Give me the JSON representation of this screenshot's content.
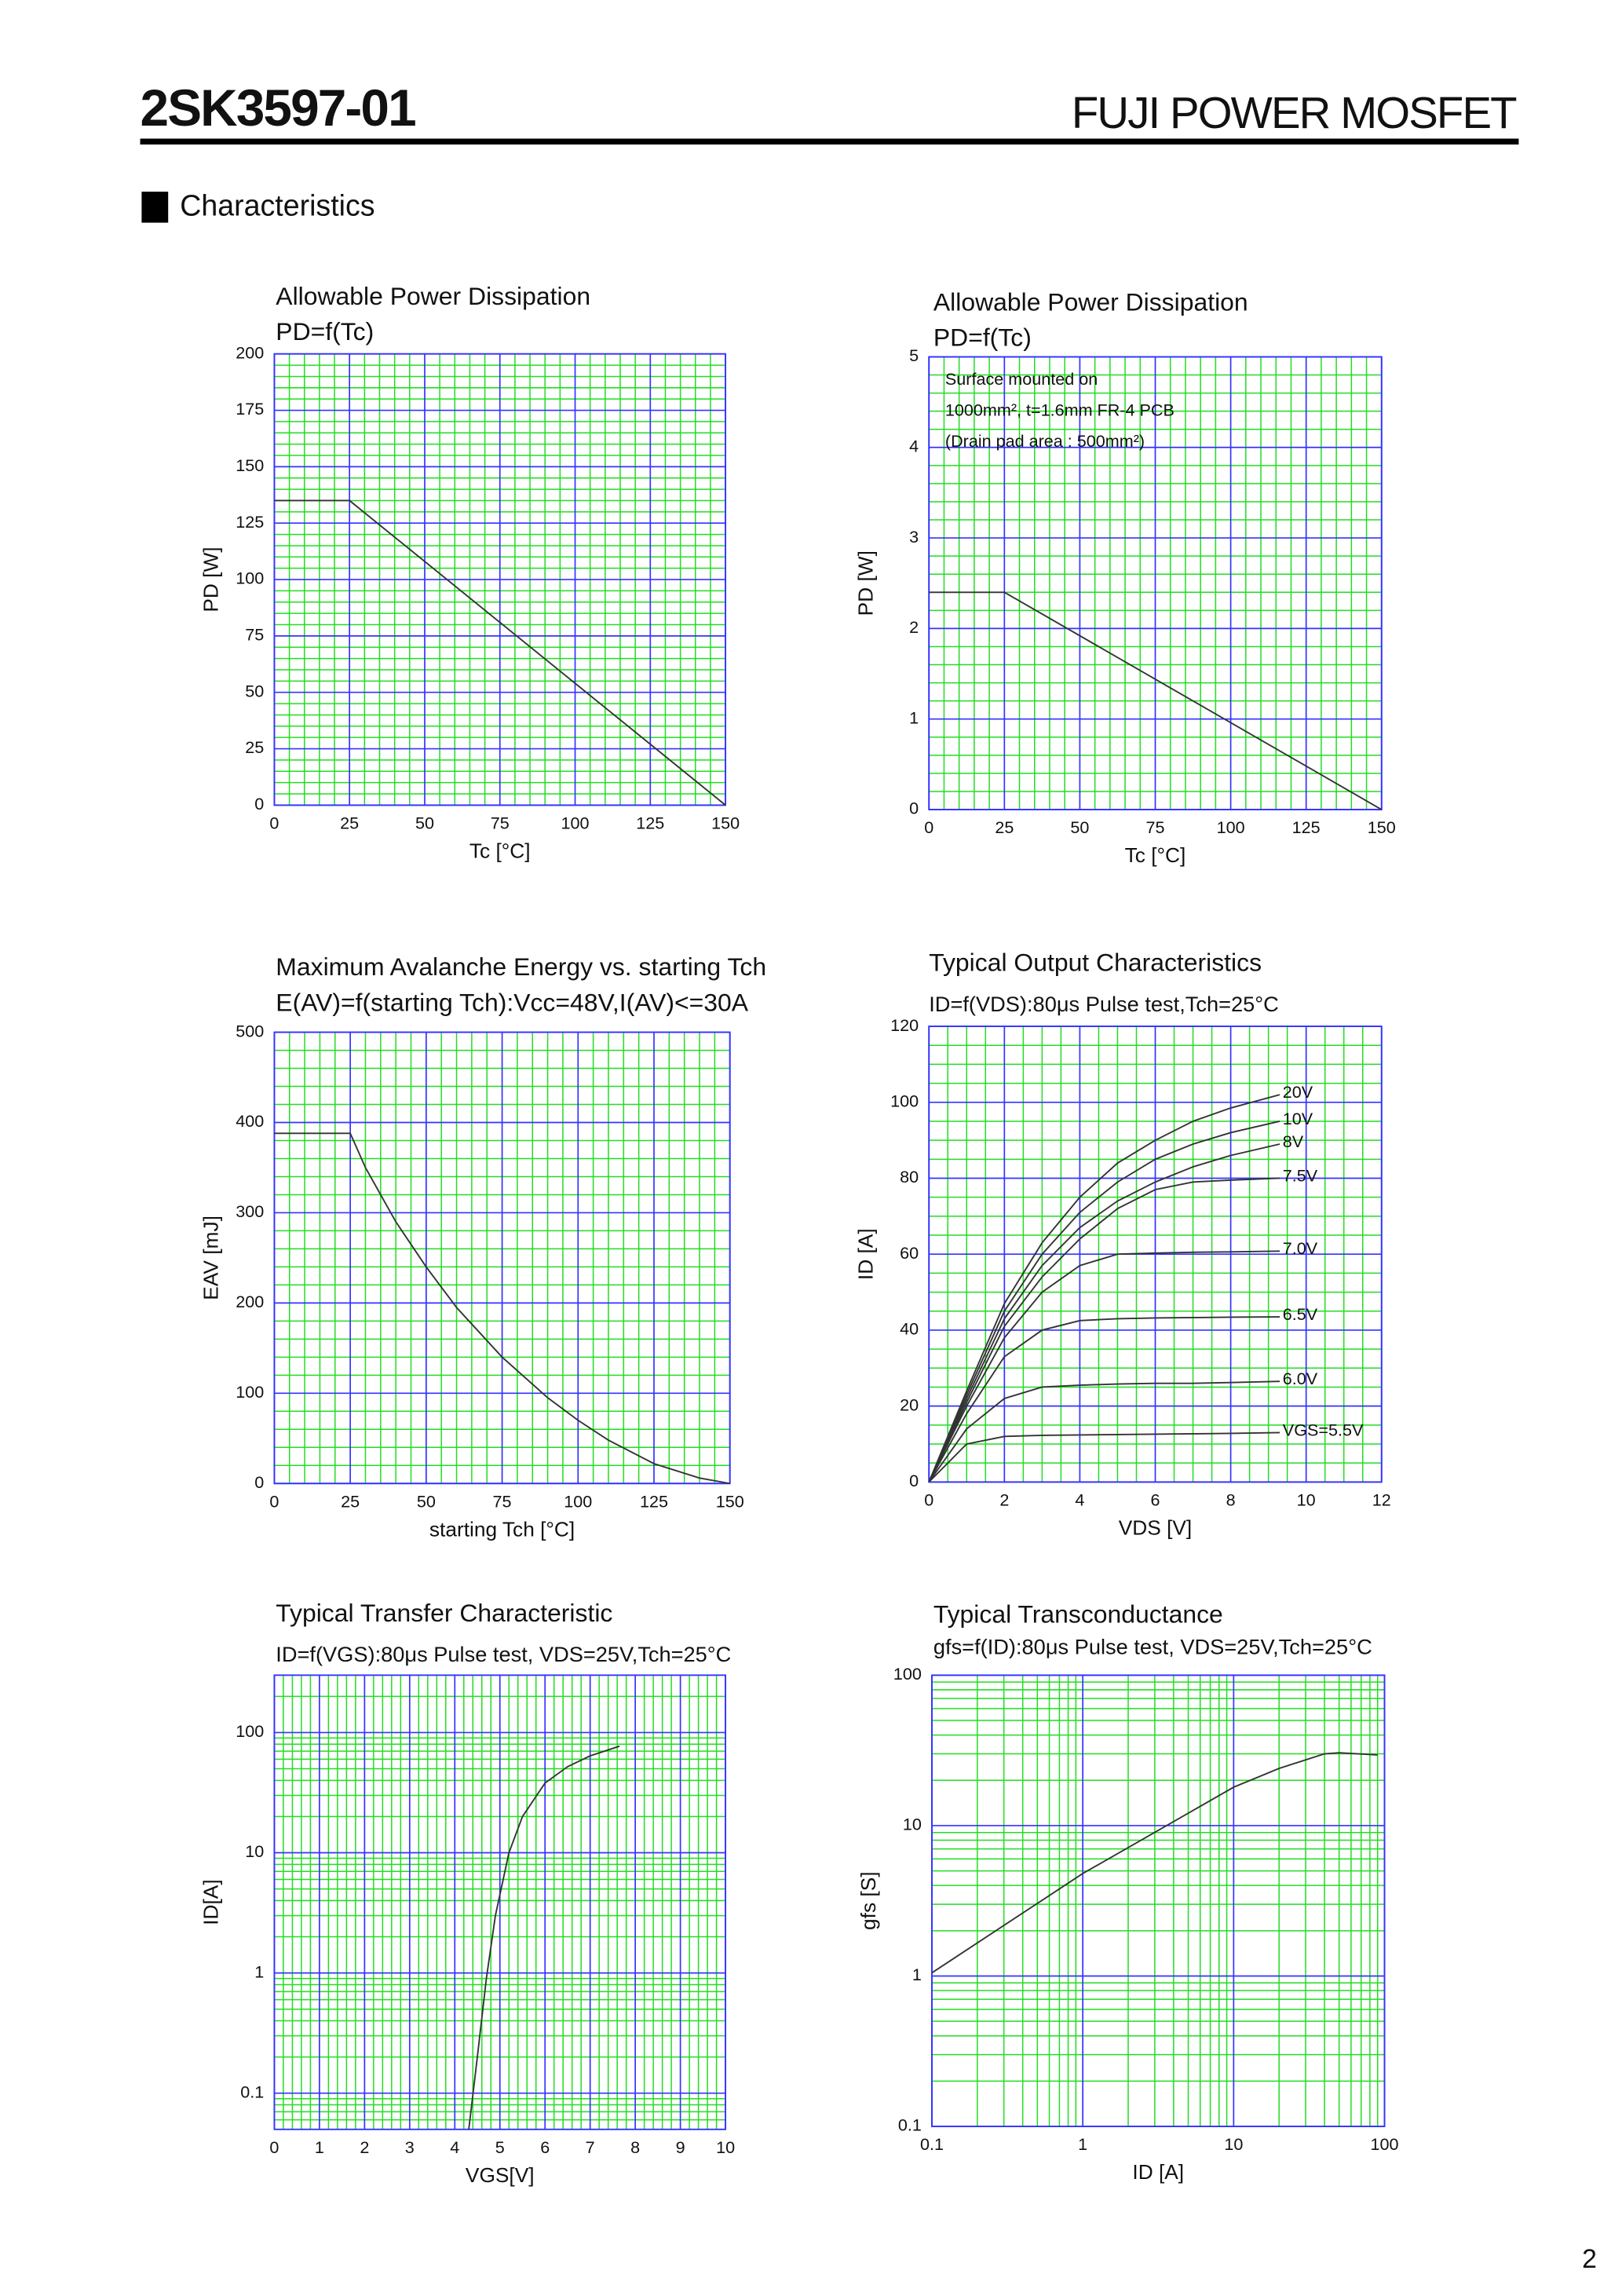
{
  "header": {
    "part": "2SK3597-01",
    "brand": "FUJI POWER MOSFET",
    "section": "Characteristics",
    "page": "2"
  },
  "chart_data": [
    {
      "type": "line",
      "title": "Allowable Power Dissipation",
      "subtitle": "PD=f(Tc)",
      "xlabel": "Tc [°C]",
      "ylabel": "PD [W]",
      "x": [
        0,
        25,
        150
      ],
      "series": [
        {
          "color": "#333333",
          "values": [
            135,
            135,
            0
          ]
        }
      ],
      "xlim": [
        0,
        150
      ],
      "ylim": [
        0,
        200
      ],
      "xticks": [
        0,
        25,
        50,
        75,
        100,
        125,
        150
      ],
      "yticks": [
        0,
        25,
        50,
        75,
        100,
        125,
        150,
        175,
        200
      ],
      "grid": true,
      "grid_color": "#3333ff",
      "minor_grid_color": "#22dd22"
    },
    {
      "type": "line",
      "title": "Allowable Power Dissipation",
      "subtitle": "PD=f(Tc)",
      "xlabel": "Tc [°C]",
      "ylabel": "PD [W]",
      "annotations": [
        "Surface mounted on",
        "1000mm², t=1.6mm FR-4 PCB",
        "(Drain pad area : 500mm²)"
      ],
      "x": [
        0,
        25,
        150
      ],
      "series": [
        {
          "color": "#333333",
          "values": [
            2.4,
            2.4,
            0
          ]
        }
      ],
      "xlim": [
        0,
        150
      ],
      "ylim": [
        0,
        5
      ],
      "xticks": [
        0,
        25,
        50,
        75,
        100,
        125,
        150
      ],
      "yticks": [
        0,
        1,
        2,
        3,
        4,
        5
      ],
      "grid": true,
      "grid_color": "#3333ff",
      "minor_grid_color": "#22dd22"
    },
    {
      "type": "line",
      "title": "Maximum Avalanche Energy vs. starting Tch",
      "subtitle": "E(AV)=f(starting Tch):Vcc=48V,I(AV)<=30A",
      "xlabel": "starting Tch [°C]",
      "ylabel": "EAV [mJ]",
      "x": [
        0,
        25,
        30,
        40,
        50,
        60,
        75,
        90,
        100,
        110,
        125,
        140,
        150
      ],
      "series": [
        {
          "color": "#333333",
          "values": [
            388,
            388,
            350,
            290,
            240,
            195,
            140,
            95,
            70,
            48,
            22,
            6,
            0
          ]
        }
      ],
      "xlim": [
        0,
        150
      ],
      "ylim": [
        0,
        500
      ],
      "xticks": [
        0,
        25,
        50,
        75,
        100,
        125,
        150
      ],
      "yticks": [
        0,
        100,
        200,
        300,
        400,
        500
      ],
      "grid": true,
      "grid_color": "#3333ff",
      "minor_grid_color": "#22dd22"
    },
    {
      "type": "line",
      "title": "Typical Output Characteristics",
      "subtitle": "ID=f(VDS):80μs Pulse test,Tch=25°C",
      "xlabel": "VDS [V]",
      "ylabel": "ID [A]",
      "x": [
        0,
        1,
        2,
        3,
        4,
        5,
        6,
        7,
        8,
        9.3
      ],
      "series": [
        {
          "name": "20V",
          "color": "#333333",
          "values": [
            0,
            24,
            47,
            63,
            75,
            84,
            90,
            95,
            98.5,
            102
          ]
        },
        {
          "name": "10V",
          "color": "#333333",
          "values": [
            0,
            23,
            45,
            60,
            71,
            79,
            85,
            89,
            92,
            95
          ]
        },
        {
          "name": "8V",
          "color": "#333333",
          "values": [
            0,
            22,
            43,
            57,
            67,
            74,
            79,
            83,
            86,
            89
          ]
        },
        {
          "name": "7.5V",
          "color": "#333333",
          "values": [
            0,
            21,
            41,
            54,
            64,
            72,
            77,
            79,
            79.5,
            80
          ]
        },
        {
          "name": "7.0V",
          "color": "#333333",
          "values": [
            0,
            20,
            38,
            50,
            57,
            60,
            60.3,
            60.5,
            60.6,
            60.8
          ]
        },
        {
          "name": "6.5V",
          "color": "#333333",
          "values": [
            0,
            18,
            33,
            40,
            42.5,
            43,
            43.2,
            43.3,
            43.4,
            43.5
          ]
        },
        {
          "name": "6.0V",
          "color": "#333333",
          "values": [
            0,
            14,
            22,
            25,
            25.5,
            25.8,
            26,
            26,
            26.2,
            26.5
          ]
        },
        {
          "name": "VGS=5.5V",
          "color": "#333333",
          "values": [
            0,
            10,
            12,
            12.3,
            12.4,
            12.5,
            12.6,
            12.7,
            12.8,
            13
          ]
        }
      ],
      "xlim": [
        0,
        12
      ],
      "ylim": [
        0,
        120
      ],
      "xticks": [
        0,
        2,
        4,
        6,
        8,
        10,
        12
      ],
      "yticks": [
        0,
        20,
        40,
        60,
        80,
        100,
        120
      ],
      "grid": true,
      "grid_color": "#3333ff",
      "minor_grid_color": "#22dd22"
    },
    {
      "type": "line",
      "title": "Typical Transfer Characteristic",
      "subtitle": "ID=f(VGS):80μs Pulse test, VDS=25V,Tch=25°C",
      "xlabel": "VGS[V]",
      "ylabel": "ID[A]",
      "x": [
        4.31,
        4.5,
        4.7,
        4.9,
        5.2,
        5.5,
        6,
        6.5,
        7,
        7.65
      ],
      "series": [
        {
          "color": "#333333",
          "values": [
            0.05,
            0.2,
            0.9,
            3,
            10,
            20,
            38,
            52,
            64,
            77
          ]
        }
      ],
      "xlim": [
        0,
        10
      ],
      "ylim": [
        0.05,
        300
      ],
      "ylog": true,
      "xticks": [
        0,
        1,
        2,
        3,
        4,
        5,
        6,
        7,
        8,
        9,
        10
      ],
      "yticks": [
        0.1,
        1,
        10,
        100
      ],
      "grid": true,
      "grid_color": "#3333ff",
      "minor_grid_color": "#22dd22"
    },
    {
      "type": "line",
      "title": "Typical Transconductance",
      "subtitle": "gfs=f(ID):80μs Pulse test, VDS=25V,Tch=25°C",
      "xlabel": "ID [A]",
      "ylabel": "gfs [S]",
      "x": [
        0.1,
        1,
        10,
        20,
        40,
        50,
        90
      ],
      "series": [
        {
          "color": "#333333",
          "values": [
            1.05,
            4.8,
            18,
            24,
            30,
            30.5,
            29.5
          ]
        }
      ],
      "xlim": [
        0.1,
        100
      ],
      "ylim": [
        0.1,
        100
      ],
      "xlog": true,
      "ylog": true,
      "xticks": [
        0.1,
        1,
        10,
        100
      ],
      "yticks": [
        0.1,
        1,
        10,
        100
      ],
      "grid": true,
      "grid_color": "#3333ff",
      "minor_grid_color": "#22dd22"
    }
  ]
}
